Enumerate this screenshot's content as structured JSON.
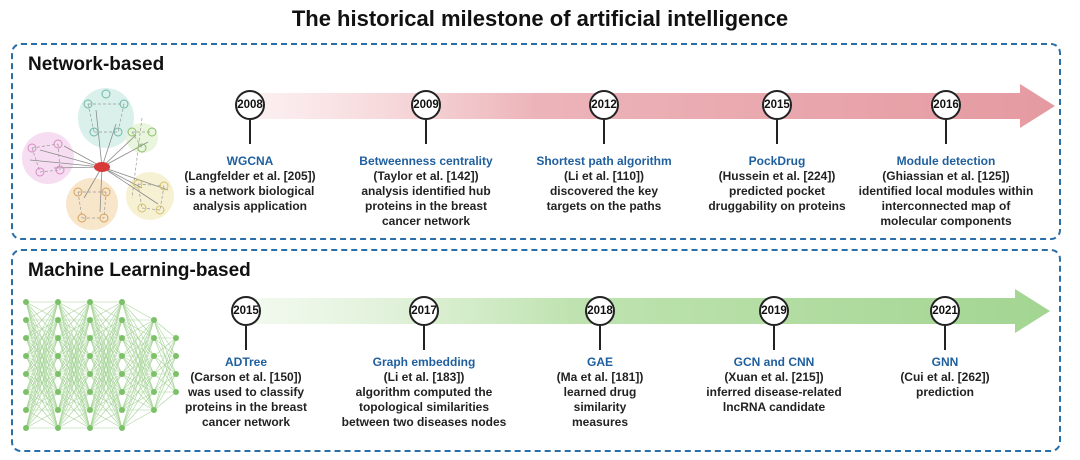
{
  "title": "The historical milestone of artificial intelligence",
  "sections": [
    {
      "label": "Network-based",
      "milestones": [
        {
          "year": "2008",
          "title": "WGCNA",
          "citation": "(Langfelder et al. [205])",
          "description": "is a network biological analysis application"
        },
        {
          "year": "2009",
          "title": "Betweenness centrality",
          "citation": "(Taylor et al. [142])",
          "description": "analysis identified hub proteins in the breast cancer network"
        },
        {
          "year": "2012",
          "title": "Shortest path algorithm",
          "citation": "(Li et al. [110])",
          "description": "discovered the key targets on the paths"
        },
        {
          "year": "2015",
          "title": "PockDrug",
          "citation": "(Hussein et al. [224])",
          "description": "predicted pocket druggability on proteins"
        },
        {
          "year": "2016",
          "title": "Module detection",
          "citation": "(Ghiassian et al. [125])",
          "description": "identified local modules within interconnected map of molecular components"
        }
      ]
    },
    {
      "label": "Machine Learning-based",
      "milestones": [
        {
          "year": "2015",
          "title": "ADTree",
          "citation": "(Carson et al. [150])",
          "description": "was used to classify proteins in the breast cancer network"
        },
        {
          "year": "2017",
          "title": "Graph embedding",
          "citation": "(Li et al. [183])",
          "description": "algorithm computed the topological similarities between two diseases nodes"
        },
        {
          "year": "2018",
          "title": "GAE",
          "citation": "(Ma et al. [181])",
          "description": "learned drug similarity measures"
        },
        {
          "year": "2019",
          "title": "GCN and CNN",
          "citation": "(Xuan et al. [215])",
          "description": "inferred disease-related lncRNA candidate"
        },
        {
          "year": "2021",
          "title": "GNN",
          "citation": "(Cui et al. [262])",
          "description": "prediction"
        }
      ]
    }
  ],
  "colors": {
    "panel_border": "#2a6fa8",
    "milestone_title": "#1f5f9e",
    "network_arrow": "#e8a7ad",
    "ml_arrow": "#a9d79a"
  }
}
